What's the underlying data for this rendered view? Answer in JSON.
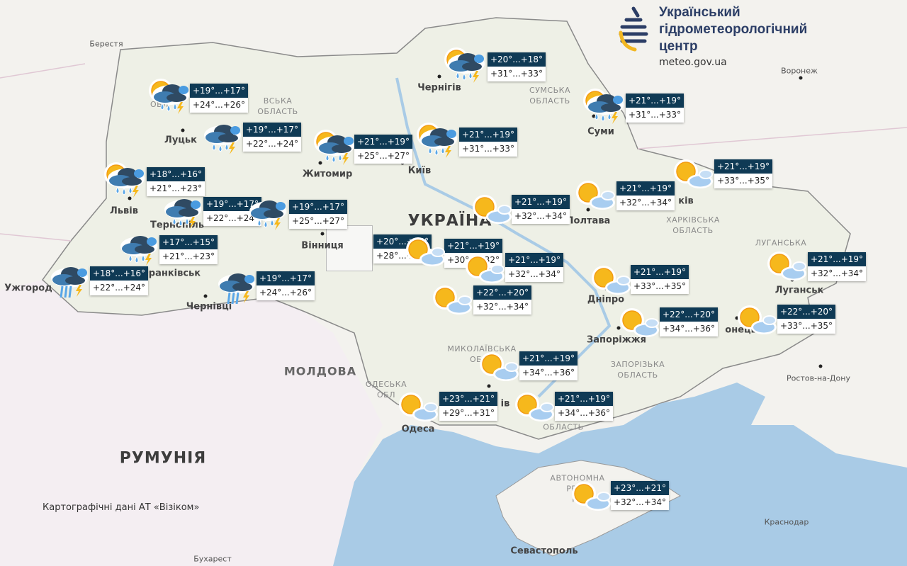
{
  "logo": {
    "line1": "Український",
    "line2": "гідрометеорологічний",
    "line3": "центр",
    "url": "meteo.gov.ua"
  },
  "attribution": "Картографічні дані АТ «Візіком»",
  "colors": {
    "label_bg": "#0f3a55",
    "sea": "#a9cbe6",
    "land": "#f3f2ee",
    "ukraine": "#eef0e6",
    "sun": "#f6b81c",
    "cloud_dark": "#2f4a63",
    "rain": "#5aa7e8"
  },
  "map_labels": {
    "countries": [
      {
        "text": "УКРАЇНА"
      },
      {
        "text": "РУМУНІЯ"
      },
      {
        "text": "МОЛДОВА"
      }
    ],
    "cities": [
      "Берестя",
      "Чернігів",
      "Суми",
      "Воронеж",
      "Луцьк",
      "Житомир",
      "Київ",
      "Львів",
      "Тернопіль",
      "Вінниця",
      "Франківськ",
      "Ужгород",
      "Чернівці",
      "Полтава",
      "ків",
      "Дніпро",
      "Запоріжжя",
      "онецьк",
      "Луганськ",
      "Одеса",
      "ів",
      "Севастополь",
      "Краснодар",
      "Ростов-на-Дону",
      "Бухарест"
    ],
    "regions": [
      "СУМСЬКА\nОБЛАСТЬ",
      "ХАРКІВСЬКА\nОБЛАСТЬ",
      "ЛУГАНСЬКА",
      "ЗАПОРІЗЬКА\nОБЛАСТЬ",
      "МИКОЛАЇВСЬКА\nОБЛА",
      "ОДЕСЬКА\nОБЛ",
      "ОБЛАСТЬ",
      "АВТОНОМНА\nРЕСП\nКР",
      "ВОЛ\nОБЛ",
      "ВСЬКА\nОБЛАСТЬ"
    ]
  },
  "stations": [
    {
      "night": "+19°...+17°",
      "day": "+24°...+26°",
      "icon": "sun-cloud-rain-thunder"
    },
    {
      "night": "+19°...+17°",
      "day": "+22°...+24°",
      "icon": "cloud-rain-thunder"
    },
    {
      "night": "+21°...+19°",
      "day": "+25°...+27°",
      "icon": "sun-cloud-rain-thunder"
    },
    {
      "night": "+21°...+19°",
      "day": "+31°...+33°",
      "icon": "sun-cloud-rain-thunder"
    },
    {
      "night": "+20°...+18°",
      "day": "+31°...+33°",
      "icon": "sun-cloud-rain-thunder"
    },
    {
      "night": "+21°...+19°",
      "day": "+31°...+33°",
      "icon": "sun-cloud-rain-thunder"
    },
    {
      "night": "+21°...+19°",
      "day": "+33°...+35°",
      "icon": "sun-cloud"
    },
    {
      "night": "+21°...+19°",
      "day": "+32°...+34°",
      "icon": "sun-cloud"
    },
    {
      "night": "+21°...+19°",
      "day": "+32°...+34°",
      "icon": "sun-cloud"
    },
    {
      "night": "+18°...+16°",
      "day": "+21°...+23°",
      "icon": "sun-cloud-rain-thunder"
    },
    {
      "night": "+19°...+17°",
      "day": "+22°...+24°",
      "icon": "cloud-rain-thunder"
    },
    {
      "night": "+19°...+17°",
      "day": "+25°...+27°",
      "icon": "cloud-rain-thunder"
    },
    {
      "night": "+17°...+15°",
      "day": "+21°...+23°",
      "icon": "cloud-rain-thunder"
    },
    {
      "night": "+18°...+16°",
      "day": "+22°...+24°",
      "icon": "cloud-heavy-rain-thunder"
    },
    {
      "night": "+19°...+17°",
      "day": "+24°...+26°",
      "icon": "cloud-heavy-rain-thunder"
    },
    {
      "night": "+20°...+18°",
      "day": "+28°...+30°",
      "icon": "sun-cloud"
    },
    {
      "night": "+21°...+19°",
      "day": "+30°...+32°",
      "icon": "sun-cloud"
    },
    {
      "night": "+21°...+19°",
      "day": "+32°...+34°",
      "icon": "sun-cloud"
    },
    {
      "night": "+22°...+20°",
      "day": "+32°...+34°",
      "icon": "sun-cloud"
    },
    {
      "night": "+21°...+19°",
      "day": "+33°...+35°",
      "icon": "sun-cloud"
    },
    {
      "night": "+22°...+20°",
      "day": "+34°...+36°",
      "icon": "sun-cloud"
    },
    {
      "night": "+22°...+20°",
      "day": "+33°...+35°",
      "icon": "sun-cloud"
    },
    {
      "night": "+21°...+19°",
      "day": "+32°...+34°",
      "icon": "sun-cloud"
    },
    {
      "night": "+21°...+19°",
      "day": "+34°...+36°",
      "icon": "sun-cloud"
    },
    {
      "night": "+23°...+21°",
      "day": "+29°...+31°",
      "icon": "sun-cloud"
    },
    {
      "night": "+21°...+19°",
      "day": "+34°...+36°",
      "icon": "sun-cloud"
    },
    {
      "night": "+23°...+21°",
      "day": "+32°...+34°",
      "icon": "sun-cloud"
    }
  ]
}
